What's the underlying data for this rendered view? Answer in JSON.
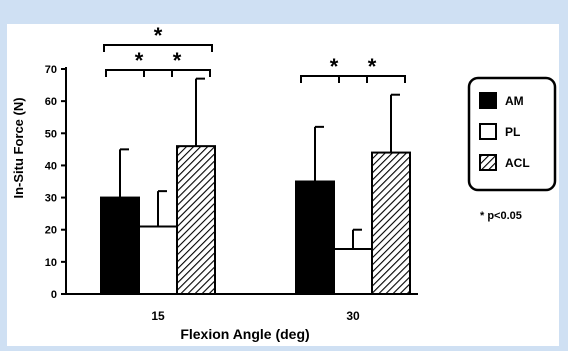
{
  "chart_data": {
    "type": "bar",
    "xlabel": "Flexion Angle (deg)",
    "ylabel": "In-Situ Force (N)",
    "ylim": [
      0,
      70
    ],
    "yticks": [
      "0",
      "10",
      "20",
      "30",
      "40",
      "50",
      "60",
      "70"
    ],
    "categories": [
      "15",
      "30"
    ],
    "series": [
      {
        "name": "AM",
        "values": [
          30,
          35
        ],
        "errors": [
          15,
          17
        ],
        "fill": "solid-black"
      },
      {
        "name": "PL",
        "values": [
          21,
          14
        ],
        "errors": [
          11,
          6
        ],
        "fill": "white"
      },
      {
        "name": "ACL",
        "values": [
          46,
          44
        ],
        "errors": [
          21,
          18
        ],
        "fill": "diagonal-hatch"
      }
    ],
    "legend_placement": "right",
    "significance_note": "* p<0.05",
    "significance_marker": "*",
    "significance_brackets": [
      {
        "category": "15",
        "from": "AM",
        "to": "PL"
      },
      {
        "category": "15",
        "from": "PL",
        "to": "ACL"
      },
      {
        "category": "15",
        "from": "AM",
        "to": "ACL"
      },
      {
        "category": "30",
        "from": "AM",
        "to": "PL"
      },
      {
        "category": "30",
        "from": "PL",
        "to": "ACL"
      }
    ]
  },
  "colors": {
    "background": "#cfe0f3",
    "panel": "#ffffff",
    "ink": "#000000"
  }
}
